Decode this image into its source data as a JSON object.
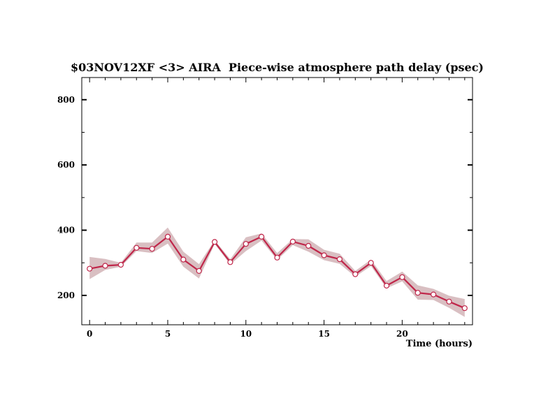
{
  "chart_data": {
    "type": "line",
    "title_left": "$03NOV12XF <3>  AIRA",
    "title_right": "Piece-wise atmosphere path delay (psec)",
    "xlabel": "Time (hours)",
    "ylabel": "",
    "xlim": [
      -0.5,
      24.5
    ],
    "ylim": [
      110,
      868
    ],
    "x_ticks": [
      0,
      5,
      10,
      15,
      20
    ],
    "y_ticks": [
      200,
      400,
      600,
      800
    ],
    "x": [
      0,
      1,
      2,
      3,
      4,
      5,
      6,
      7,
      8,
      9,
      10,
      11,
      12,
      13,
      14,
      15,
      16,
      17,
      18,
      19,
      20,
      21,
      22,
      23,
      24
    ],
    "series": [
      {
        "values": [
          282,
          291,
          294,
          346,
          343,
          380,
          310,
          275,
          364,
          302,
          358,
          380,
          316,
          365,
          352,
          323,
          311,
          265,
          300,
          230,
          256,
          208,
          203,
          181,
          161
        ],
        "upper": [
          318,
          312,
          300,
          362,
          362,
          408,
          334,
          296,
          369,
          311,
          378,
          390,
          330,
          373,
          372,
          340,
          328,
          275,
          310,
          244,
          273,
          231,
          220,
          199,
          189
        ],
        "lower": [
          250,
          278,
          288,
          336,
          330,
          359,
          288,
          252,
          358,
          295,
          336,
          368,
          309,
          354,
          334,
          308,
          297,
          257,
          290,
          222,
          243,
          187,
          186,
          162,
          134
        ]
      }
    ],
    "colors": {
      "line": "#c0264a",
      "band": "#d9bfc2",
      "marker_fill": "#ffffff",
      "marker_stroke": "#c0264a",
      "axes": "#000000"
    }
  }
}
